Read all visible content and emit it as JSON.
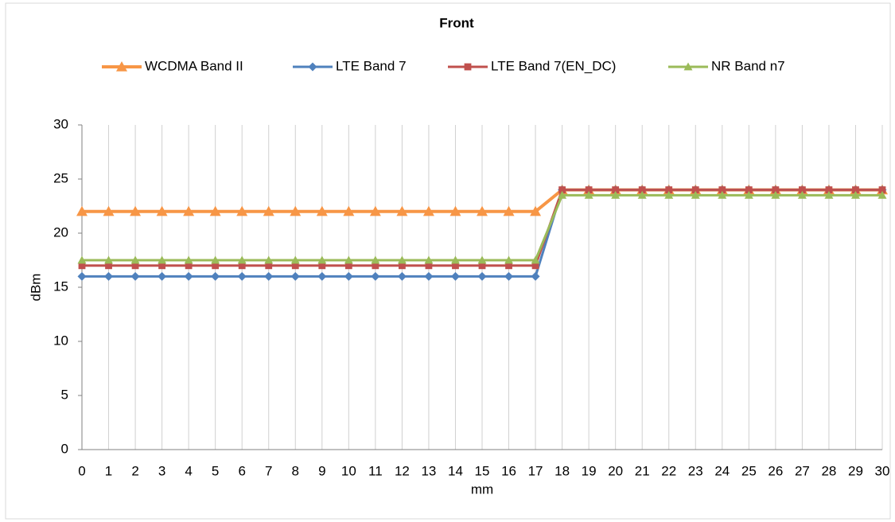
{
  "chart_data": {
    "type": "line",
    "title": "Front",
    "xlabel": "mm",
    "ylabel": "dBm",
    "x": [
      0,
      1,
      2,
      3,
      4,
      5,
      6,
      7,
      8,
      9,
      10,
      11,
      12,
      13,
      14,
      15,
      16,
      17,
      18,
      19,
      20,
      21,
      22,
      23,
      24,
      25,
      26,
      27,
      28,
      29,
      30
    ],
    "xlim": [
      0,
      30
    ],
    "xticks": [
      0,
      1,
      2,
      3,
      4,
      5,
      6,
      7,
      8,
      9,
      10,
      11,
      12,
      13,
      14,
      15,
      16,
      17,
      18,
      19,
      20,
      21,
      22,
      23,
      24,
      25,
      26,
      27,
      28,
      29,
      30
    ],
    "ylim": [
      0,
      30
    ],
    "yticks": [
      0,
      5,
      10,
      15,
      20,
      25,
      30
    ],
    "grid": "x",
    "legend": "top",
    "series": [
      {
        "name": "WCDMA Band II",
        "color": "#f79646",
        "marker": "triangle",
        "values": [
          22,
          22,
          22,
          22,
          22,
          22,
          22,
          22,
          22,
          22,
          22,
          22,
          22,
          22,
          22,
          22,
          22,
          22,
          24,
          24,
          24,
          24,
          24,
          24,
          24,
          24,
          24,
          24,
          24,
          24,
          24
        ]
      },
      {
        "name": "LTE Band 7",
        "color": "#4f81bd",
        "marker": "diamond",
        "values": [
          16,
          16,
          16,
          16,
          16,
          16,
          16,
          16,
          16,
          16,
          16,
          16,
          16,
          16,
          16,
          16,
          16,
          16,
          24,
          24,
          24,
          24,
          24,
          24,
          24,
          24,
          24,
          24,
          24,
          24,
          24
        ]
      },
      {
        "name": "LTE Band 7(EN_DC)",
        "color": "#c0504d",
        "marker": "square",
        "values": [
          17,
          17,
          17,
          17,
          17,
          17,
          17,
          17,
          17,
          17,
          17,
          17,
          17,
          17,
          17,
          17,
          17,
          17,
          24,
          24,
          24,
          24,
          24,
          24,
          24,
          24,
          24,
          24,
          24,
          24,
          24
        ]
      },
      {
        "name": "NR Band n7",
        "color": "#9bbb59",
        "marker": "triangle",
        "values": [
          17.5,
          17.5,
          17.5,
          17.5,
          17.5,
          17.5,
          17.5,
          17.5,
          17.5,
          17.5,
          17.5,
          17.5,
          17.5,
          17.5,
          17.5,
          17.5,
          17.5,
          17.5,
          23.5,
          23.5,
          23.5,
          23.5,
          23.5,
          23.5,
          23.5,
          23.5,
          23.5,
          23.5,
          23.5,
          23.5,
          23.5
        ]
      }
    ]
  }
}
